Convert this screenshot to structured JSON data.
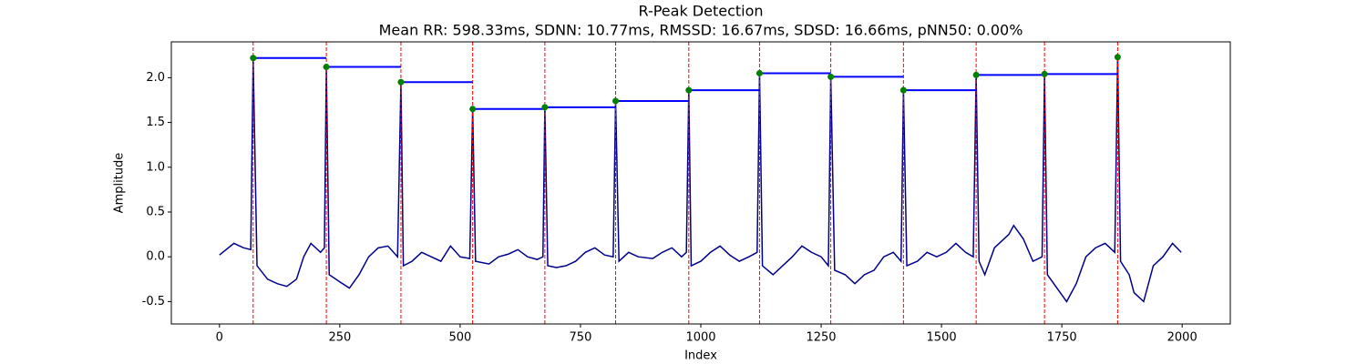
{
  "chart_data": {
    "type": "line",
    "title": "R-Peak Detection",
    "subtitle": "Mean RR: 598.33ms, SDNN: 10.77ms, RMSSD: 16.67ms, SDSD: 16.66ms, pNN50: 0.00%",
    "xlabel": "Index",
    "ylabel": "Amplitude",
    "xlim": [
      -100,
      2100
    ],
    "ylim": [
      -0.75,
      2.4
    ],
    "xticks": [
      0,
      250,
      500,
      750,
      1000,
      1250,
      1500,
      1750,
      2000
    ],
    "yticks": [
      -0.5,
      {
        "value": 0,
        "label": "0.0"
      },
      0.5,
      {
        "value": 1,
        "label": "1.0"
      },
      1.5,
      {
        "value": 2,
        "label": "2.0"
      }
    ],
    "color": "#00008b",
    "x": [
      0,
      30,
      50,
      65,
      70,
      78,
      100,
      120,
      140,
      160,
      175,
      190,
      210,
      218,
      222,
      228,
      250,
      270,
      290,
      310,
      330,
      350,
      370,
      377,
      382,
      400,
      420,
      440,
      460,
      480,
      500,
      520,
      526,
      532,
      560,
      580,
      600,
      620,
      640,
      660,
      672,
      676,
      682,
      700,
      720,
      740,
      760,
      780,
      800,
      818,
      823,
      830,
      850,
      870,
      900,
      920,
      940,
      960,
      970,
      975,
      980,
      1000,
      1020,
      1040,
      1060,
      1080,
      1100,
      1117,
      1122,
      1128,
      1150,
      1170,
      1190,
      1210,
      1230,
      1250,
      1265,
      1270,
      1278,
      1300,
      1320,
      1340,
      1360,
      1380,
      1400,
      1416,
      1421,
      1428,
      1450,
      1470,
      1490,
      1510,
      1530,
      1550,
      1566,
      1572,
      1578,
      1590,
      1610,
      1640,
      1650,
      1670,
      1690,
      1709,
      1714,
      1720,
      1740,
      1760,
      1780,
      1800,
      1820,
      1840,
      1860,
      1866,
      1872,
      1890,
      1900,
      1920,
      1940,
      1960,
      1980,
      1998
    ],
    "values": [
      0.02,
      0.15,
      0.1,
      0.08,
      2.22,
      -0.1,
      -0.25,
      -0.3,
      -0.33,
      -0.25,
      0.0,
      0.15,
      0.05,
      0.1,
      2.12,
      -0.2,
      -0.28,
      -0.35,
      -0.2,
      0.0,
      0.1,
      0.12,
      0.0,
      1.95,
      -0.1,
      -0.05,
      0.05,
      0.0,
      -0.05,
      0.12,
      0.0,
      -0.02,
      1.65,
      -0.05,
      -0.08,
      0.0,
      0.03,
      0.08,
      0.0,
      -0.03,
      0.0,
      1.67,
      -0.1,
      -0.12,
      -0.1,
      -0.05,
      0.05,
      0.1,
      0.02,
      0.0,
      1.74,
      -0.05,
      0.05,
      0.0,
      -0.02,
      0.05,
      0.1,
      0.0,
      0.05,
      1.86,
      -0.1,
      -0.05,
      0.05,
      0.12,
      0.02,
      -0.05,
      0.0,
      0.05,
      2.05,
      -0.1,
      -0.2,
      -0.1,
      0.0,
      0.12,
      0.05,
      0.0,
      -0.1,
      2.01,
      -0.15,
      -0.2,
      -0.3,
      -0.2,
      -0.15,
      0.0,
      0.05,
      -0.05,
      1.86,
      -0.1,
      -0.05,
      0.05,
      0.0,
      0.05,
      0.15,
      0.05,
      0.0,
      2.03,
      -0.05,
      -0.2,
      0.1,
      0.25,
      0.35,
      0.2,
      -0.05,
      0.0,
      2.04,
      -0.2,
      -0.35,
      -0.5,
      -0.3,
      0.0,
      0.1,
      0.15,
      0.05,
      2.23,
      -0.05,
      -0.2,
      -0.4,
      -0.5,
      -0.1,
      0.0,
      0.15,
      0.05
    ],
    "peaks": {
      "x": [
        70,
        222,
        377,
        526,
        676,
        823,
        975,
        1122,
        1270,
        1421,
        1572,
        1714,
        1866
      ],
      "values": [
        2.22,
        2.12,
        1.95,
        1.65,
        1.67,
        1.74,
        1.86,
        2.05,
        2.01,
        1.86,
        2.03,
        2.04,
        2.23
      ],
      "color": "green"
    },
    "peak_line_color": "red",
    "rr_line_color": "blue"
  }
}
